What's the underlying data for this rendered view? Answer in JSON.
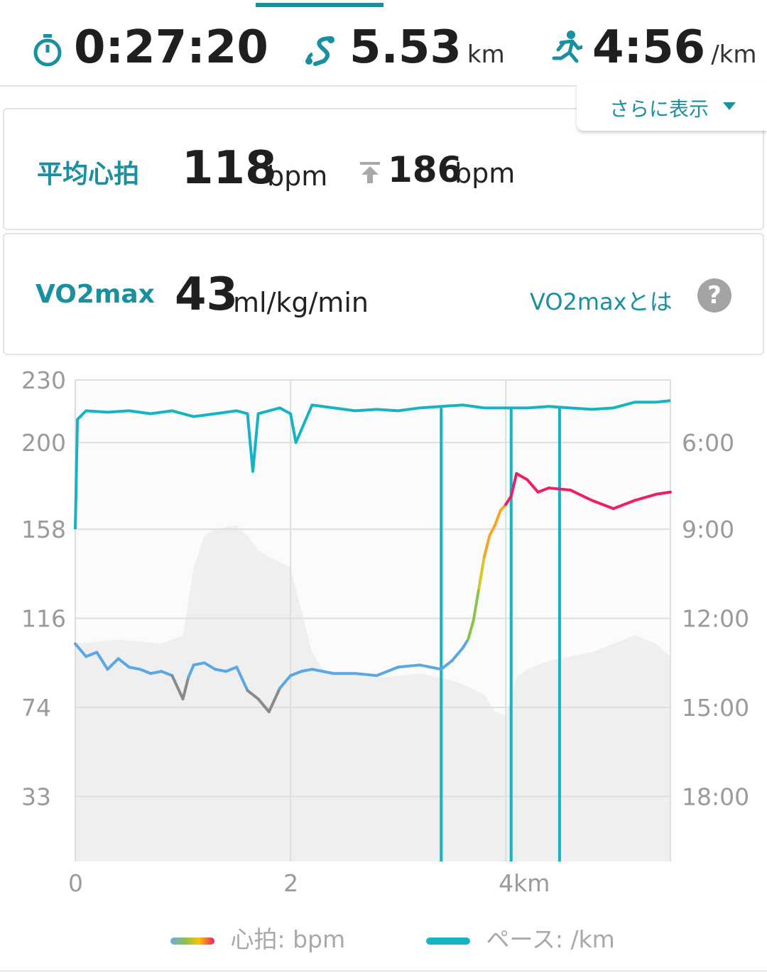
{
  "summary": {
    "time": "0:27:20",
    "distance_value": "5.53",
    "distance_unit": "km",
    "pace_value": "4:56",
    "pace_unit": "/km",
    "more_label": "さらに表示"
  },
  "heart_rate": {
    "label": "平均心拍",
    "avg_value": "118",
    "avg_unit": "bpm",
    "max_value": "186",
    "max_unit": "bpm"
  },
  "vo2max": {
    "label": "VO2max",
    "value": "43",
    "unit": "ml/kg/min",
    "info_link": "VO2maxとは",
    "help_symbol": "?"
  },
  "legend": {
    "hr_label": "心拍: bpm",
    "pace_label": "ペース: /km"
  },
  "colors": {
    "accent": "#1a8fa0",
    "pace_line": "#15b3c4",
    "hr_blue": "#5ba7e6",
    "hr_gray": "#8a8a8a",
    "hr_red": "#ec1f66",
    "elevation_fill": "#efefef"
  },
  "chart_data": {
    "type": "line",
    "x_ticks": [
      "0",
      "2",
      "4km"
    ],
    "y_left_ticks": [
      "230",
      "200",
      "158",
      "116",
      "74",
      "33"
    ],
    "y_right_ticks": [
      "6:00",
      "9:00",
      "12:00",
      "15:00",
      "18:00"
    ],
    "xlim": [
      0,
      5.53
    ],
    "ylim_left": [
      0,
      230
    ],
    "pace_dropouts_km": [
      3.4,
      4.05,
      4.5
    ],
    "series": [
      {
        "name": "心拍: bpm",
        "x": [
          0,
          0.1,
          0.2,
          0.3,
          0.4,
          0.5,
          0.6,
          0.7,
          0.8,
          0.9,
          1.0,
          1.05,
          1.1,
          1.2,
          1.3,
          1.4,
          1.5,
          1.6,
          1.7,
          1.8,
          1.9,
          2.0,
          2.1,
          2.2,
          2.4,
          2.6,
          2.8,
          3.0,
          3.2,
          3.4,
          3.5,
          3.6,
          3.65,
          3.7,
          3.75,
          3.8,
          3.85,
          3.9,
          3.95,
          4.0,
          4.05,
          4.1,
          4.2,
          4.3,
          4.4,
          4.6,
          4.8,
          5.0,
          5.2,
          5.4,
          5.53
        ],
        "values": [
          104,
          98,
          100,
          92,
          97,
          93,
          92,
          90,
          91,
          89,
          78,
          88,
          94,
          95,
          92,
          91,
          93,
          82,
          78,
          72,
          83,
          89,
          91,
          92,
          90,
          90,
          89,
          93,
          94,
          92,
          96,
          102,
          106,
          115,
          130,
          145,
          155,
          160,
          167,
          170,
          174,
          185,
          182,
          176,
          178,
          177,
          172,
          168,
          172,
          175,
          176
        ]
      },
      {
        "name": "ペース: /km",
        "x": [
          0,
          0.02,
          0.1,
          0.3,
          0.5,
          0.7,
          0.9,
          1.1,
          1.3,
          1.5,
          1.6,
          1.65,
          1.7,
          1.9,
          2.0,
          2.05,
          2.2,
          2.4,
          2.6,
          2.8,
          3.0,
          3.2,
          3.4,
          3.6,
          3.8,
          4.0,
          4.2,
          4.4,
          4.6,
          4.8,
          5.0,
          5.2,
          5.4,
          5.53
        ],
        "values": [
          9.0,
          5.2,
          4.9,
          4.95,
          4.9,
          5.0,
          4.9,
          5.1,
          5.0,
          4.9,
          5.0,
          7.0,
          5.0,
          4.8,
          5.0,
          6.0,
          4.7,
          4.8,
          4.9,
          4.85,
          4.9,
          4.8,
          4.75,
          4.7,
          4.8,
          4.8,
          4.8,
          4.75,
          4.8,
          4.85,
          4.8,
          4.6,
          4.6,
          4.55
        ]
      }
    ],
    "elevation": {
      "x": [
        0,
        0.4,
        0.8,
        1.0,
        1.1,
        1.2,
        1.3,
        1.5,
        1.6,
        1.7,
        1.8,
        2.0,
        2.1,
        2.2,
        2.3,
        2.4,
        2.6,
        2.8,
        3.0,
        3.2,
        3.4,
        3.6,
        3.8,
        3.9,
        4.0,
        4.1,
        4.2,
        4.4,
        4.6,
        4.8,
        5.0,
        5.2,
        5.4,
        5.53
      ],
      "values": [
        104,
        106,
        104,
        108,
        140,
        155,
        158,
        160,
        155,
        148,
        145,
        140,
        120,
        100,
        92,
        90,
        89,
        88,
        89,
        90,
        88,
        85,
        80,
        72,
        70,
        88,
        92,
        96,
        98,
        100,
        104,
        108,
        104,
        98
      ]
    }
  }
}
